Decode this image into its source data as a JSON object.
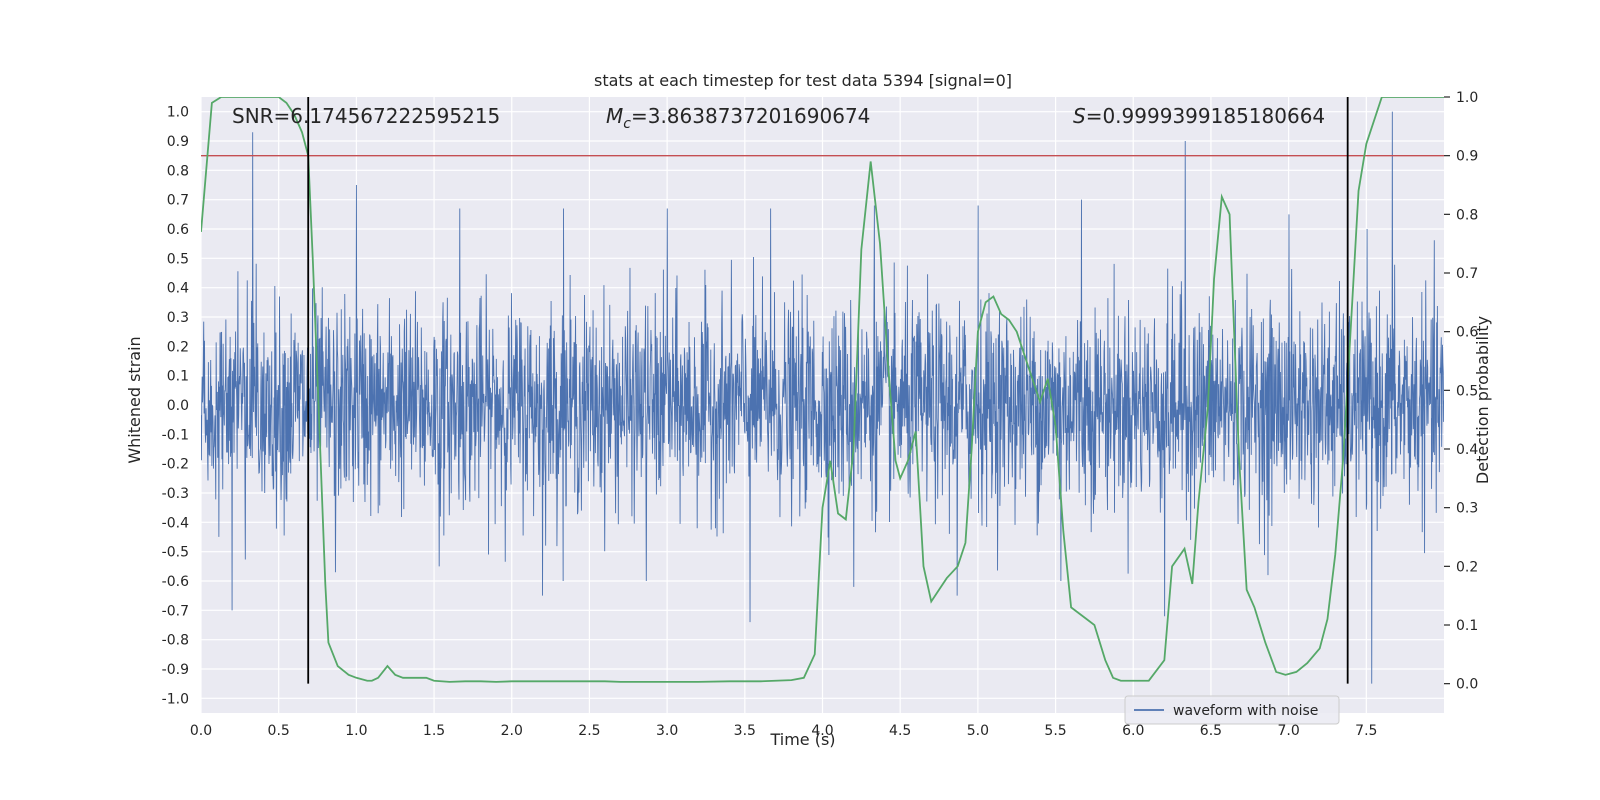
{
  "chart_data": {
    "type": "line",
    "title": "stats at each timestep for test data 5394 [signal=0]",
    "xlabel": "Time (s)",
    "ylabel_left": "Whitened strain",
    "ylabel_right": "Detection probability",
    "xlim": [
      0,
      8
    ],
    "ylim_left": [
      -1.05,
      1.05
    ],
    "ylim_right": [
      -0.05,
      1.0
    ],
    "x_ticks": [
      "0.0",
      "0.5",
      "1.0",
      "1.5",
      "2.0",
      "2.5",
      "3.0",
      "3.5",
      "4.0",
      "4.5",
      "5.0",
      "5.5",
      "6.0",
      "6.5",
      "7.0",
      "7.5"
    ],
    "y_left_ticks": [
      "-1.0",
      "-0.9",
      "-0.8",
      "-0.7",
      "-0.6",
      "-0.5",
      "-0.4",
      "-0.3",
      "-0.2",
      "-0.1",
      "0.0",
      "0.1",
      "0.2",
      "0.3",
      "0.4",
      "0.5",
      "0.6",
      "0.7",
      "0.8",
      "0.9",
      "1.0"
    ],
    "y_right_ticks": [
      "0.0",
      "0.1",
      "0.2",
      "0.3",
      "0.4",
      "0.5",
      "0.6",
      "0.7",
      "0.8",
      "0.9",
      "1.0"
    ],
    "grid": true,
    "legend_placement": "lower-right",
    "annotations": {
      "snr": "SNR=6.174567222595215",
      "mc_prefix": "M",
      "mc_sub": "c",
      "mc_value": "=3.8638737201690674",
      "s_prefix": "S",
      "s_value": "=0.9999399185180664"
    },
    "threshold": 0.9,
    "vlines": [
      0.69,
      7.38
    ],
    "colors": {
      "waveform": "#4c72b0",
      "probability": "#55a868",
      "threshold": "#c44e52",
      "vline": "#000000",
      "background": "#eaeaf2",
      "grid": "#ffffff"
    },
    "series": [
      {
        "name": "waveform with noise",
        "axis": "left",
        "style": "dense noise",
        "x_range": [
          0,
          8
        ],
        "spike_upper": [
          0.93,
          0.75,
          0.67,
          0.67,
          0.67,
          0.67,
          0.68,
          0.68,
          0.7,
          0.9,
          0.65,
          1.0
        ],
        "spike_lower": [
          -0.7,
          -0.57,
          -0.55,
          -0.65,
          -0.6,
          -0.74,
          -0.62,
          -0.65,
          -0.6,
          -0.72,
          -0.58,
          -0.95
        ]
      },
      {
        "name": "",
        "axis": "right",
        "x": [
          0.0,
          0.07,
          0.13,
          0.2,
          0.3,
          0.4,
          0.5,
          0.55,
          0.6,
          0.65,
          0.69,
          0.72,
          0.76,
          0.8,
          0.82,
          0.88,
          0.95,
          1.0,
          1.07,
          1.1,
          1.14,
          1.2,
          1.25,
          1.3,
          1.35,
          1.4,
          1.45,
          1.5,
          1.6,
          1.7,
          1.8,
          1.9,
          2.0,
          2.1,
          2.2,
          2.3,
          2.4,
          2.5,
          2.6,
          2.7,
          2.8,
          2.9,
          3.0,
          3.2,
          3.4,
          3.6,
          3.8,
          3.88,
          3.95,
          4.0,
          4.05,
          4.1,
          4.15,
          4.2,
          4.25,
          4.31,
          4.37,
          4.42,
          4.47,
          4.5,
          4.55,
          4.6,
          4.65,
          4.7,
          4.75,
          4.8,
          4.87,
          4.92,
          4.96,
          5.0,
          5.05,
          5.1,
          5.15,
          5.2,
          5.25,
          5.3,
          5.35,
          5.4,
          5.45,
          5.5,
          5.55,
          5.6,
          5.7,
          5.75,
          5.82,
          5.87,
          5.92,
          6.0,
          6.1,
          6.2,
          6.25,
          6.33,
          6.38,
          6.42,
          6.48,
          6.52,
          6.57,
          6.62,
          6.68,
          6.73,
          6.78,
          6.85,
          6.92,
          6.98,
          7.05,
          7.12,
          7.2,
          7.25,
          7.3,
          7.35,
          7.39,
          7.45,
          7.5,
          7.6,
          7.7,
          8.0
        ],
        "y": [
          0.77,
          0.99,
          1.0,
          1.0,
          1.0,
          1.0,
          1.0,
          0.99,
          0.97,
          0.94,
          0.9,
          0.72,
          0.45,
          0.17,
          0.07,
          0.03,
          0.015,
          0.01,
          0.005,
          0.005,
          0.01,
          0.03,
          0.015,
          0.01,
          0.01,
          0.01,
          0.01,
          0.005,
          0.003,
          0.004,
          0.004,
          0.003,
          0.004,
          0.004,
          0.004,
          0.004,
          0.004,
          0.004,
          0.004,
          0.003,
          0.003,
          0.003,
          0.003,
          0.003,
          0.004,
          0.004,
          0.006,
          0.01,
          0.05,
          0.3,
          0.38,
          0.29,
          0.28,
          0.4,
          0.74,
          0.89,
          0.75,
          0.55,
          0.38,
          0.35,
          0.38,
          0.43,
          0.2,
          0.14,
          0.16,
          0.18,
          0.2,
          0.24,
          0.4,
          0.6,
          0.65,
          0.66,
          0.63,
          0.62,
          0.6,
          0.56,
          0.52,
          0.48,
          0.52,
          0.44,
          0.26,
          0.13,
          0.11,
          0.1,
          0.04,
          0.01,
          0.005,
          0.005,
          0.005,
          0.04,
          0.2,
          0.23,
          0.17,
          0.31,
          0.47,
          0.69,
          0.83,
          0.8,
          0.39,
          0.16,
          0.13,
          0.07,
          0.02,
          0.015,
          0.02,
          0.035,
          0.06,
          0.11,
          0.22,
          0.38,
          0.56,
          0.84,
          0.92,
          1.0,
          1.0,
          1.0
        ]
      }
    ]
  }
}
